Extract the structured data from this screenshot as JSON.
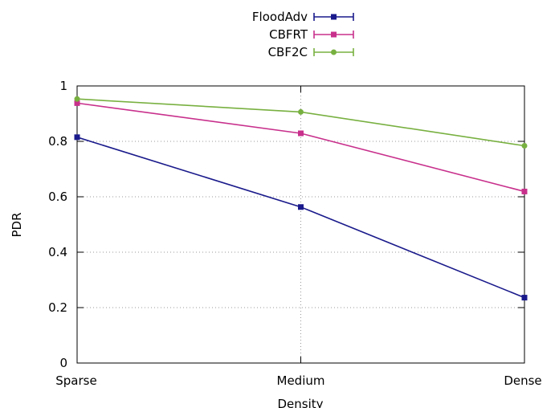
{
  "chart_data": {
    "type": "line",
    "categories": [
      "Sparse",
      "Medium",
      "Dense"
    ],
    "xlabel": "Density",
    "ylabel": "PDR",
    "ylim": [
      0,
      1
    ],
    "yticks": [
      0,
      0.2,
      0.4,
      0.6,
      0.8,
      1
    ],
    "ytick_labels": [
      "0",
      "0.2",
      "0.4",
      "0.6",
      "0.8",
      "1"
    ],
    "grid": true,
    "legend_position": "top-center",
    "series": [
      {
        "name": "FloodAdv",
        "color": "#1a1a8c",
        "marker": "square",
        "values": [
          0.815,
          0.563,
          0.236
        ]
      },
      {
        "name": "CBFRT",
        "color": "#c8308c",
        "marker": "square",
        "values": [
          0.938,
          0.829,
          0.619
        ]
      },
      {
        "name": "CBF2C",
        "color": "#78b040",
        "marker": "circle",
        "values": [
          0.953,
          0.906,
          0.784
        ]
      }
    ]
  }
}
